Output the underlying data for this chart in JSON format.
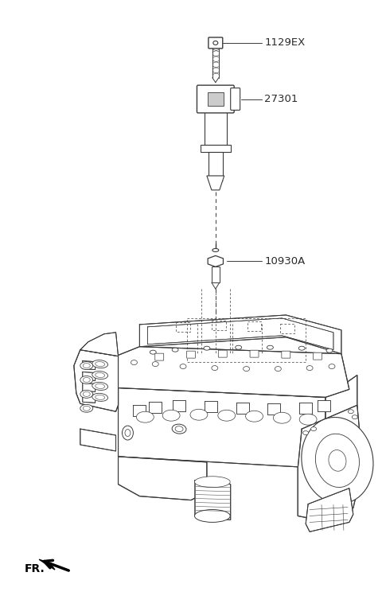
{
  "bg_color": "#ffffff",
  "fig_width": 4.8,
  "fig_height": 7.73,
  "dpi": 100,
  "parts": [
    {
      "id": "1129EX",
      "label": "1129EX"
    },
    {
      "id": "27301",
      "label": "27301"
    },
    {
      "id": "10930A",
      "label": "10930A"
    }
  ],
  "line_color": "#3a3a3a",
  "label_color": "#2a2a2a",
  "fr_label": "FR."
}
